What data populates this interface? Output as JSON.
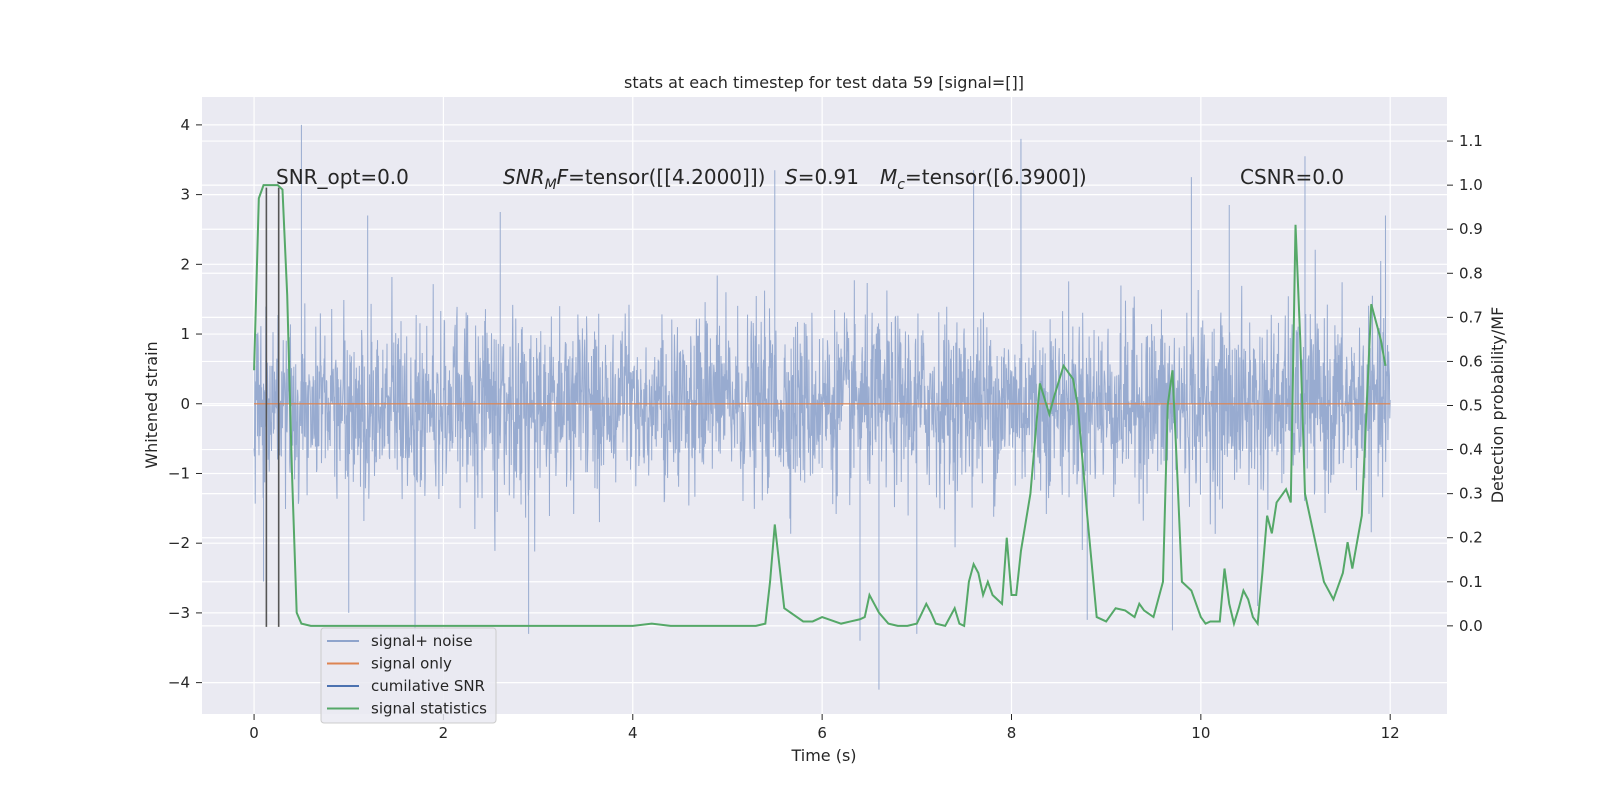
{
  "chart_data": {
    "type": "line",
    "title": "stats at each timestep for test data 59 [signal=[]]",
    "xlabel": "Time (s)",
    "ylabel": "Whitened strain",
    "ylabel_right": "Detection probability/MF",
    "xlim": [
      -0.55,
      12.6
    ],
    "ylim": [
      -4.45,
      4.4
    ],
    "ylim_right": [
      -0.2,
      1.2
    ],
    "x_ticks": [
      0,
      2,
      4,
      6,
      8,
      10,
      12
    ],
    "y_ticks": [
      -4,
      -3,
      -2,
      -1,
      0,
      1,
      2,
      3,
      4
    ],
    "y_ticks_right": [
      0.0,
      0.1,
      0.2,
      0.3,
      0.4,
      0.5,
      0.6,
      0.7,
      0.8,
      0.9,
      1.0,
      1.1
    ],
    "grid": true,
    "legend_position": "lower-left",
    "annotations": {
      "snr_opt": "SNR_opt=0.0",
      "snr_mf_prefix": "SNR",
      "snr_mf_sub": "M",
      "snr_mf_mid": "F",
      "snr_mf_value": "=tensor([[4.2000]])",
      "s_label": "S",
      "s_value": "=0.91",
      "mc_label": "M",
      "mc_sub": "c",
      "mc_value": "=tensor([6.3900])",
      "csnr": "CSNR=0.0"
    },
    "series": [
      {
        "name": "signal+ noise",
        "color": "#8fa4cc",
        "axis": "left",
        "x_range": [
          0,
          12
        ],
        "typical_range": [
          -1.3,
          1.3
        ],
        "peaks_high": [
          [
            0.5,
            4.0
          ],
          [
            1.2,
            2.7
          ],
          [
            2.6,
            2.75
          ],
          [
            5.5,
            3.35
          ],
          [
            7.6,
            3.35
          ],
          [
            8.1,
            3.8
          ],
          [
            9.9,
            3.25
          ],
          [
            10.3,
            2.85
          ],
          [
            11.1,
            3.55
          ],
          [
            11.95,
            2.7
          ]
        ],
        "peaks_low": [
          [
            0.1,
            -2.55
          ],
          [
            1.0,
            -3.0
          ],
          [
            1.7,
            -3.25
          ],
          [
            2.9,
            -3.3
          ],
          [
            6.4,
            -3.4
          ],
          [
            6.6,
            -4.1
          ],
          [
            7.0,
            -3.3
          ],
          [
            8.8,
            -3.1
          ],
          [
            9.7,
            -3.25
          ],
          [
            10.6,
            -2.9
          ]
        ]
      },
      {
        "name": "signal only",
        "color": "#dd8452",
        "axis": "left",
        "x": [
          0,
          12
        ],
        "y": [
          0,
          0
        ]
      },
      {
        "name": "cumilative SNR",
        "color": "#4c72b0",
        "axis": "left",
        "x": [],
        "y": []
      },
      {
        "name": "signal statistics",
        "color": "#55a868",
        "axis": "right",
        "x": [
          0.0,
          0.05,
          0.1,
          0.15,
          0.2,
          0.25,
          0.3,
          0.35,
          0.4,
          0.45,
          0.5,
          0.6,
          0.8,
          1.0,
          1.5,
          2.0,
          2.5,
          3.0,
          3.5,
          4.0,
          4.2,
          4.4,
          4.6,
          5.0,
          5.3,
          5.4,
          5.45,
          5.5,
          5.6,
          5.8,
          5.9,
          6.0,
          6.2,
          6.3,
          6.4,
          6.45,
          6.5,
          6.55,
          6.6,
          6.7,
          6.8,
          6.9,
          7.0,
          7.1,
          7.15,
          7.2,
          7.3,
          7.4,
          7.45,
          7.5,
          7.55,
          7.6,
          7.65,
          7.7,
          7.75,
          7.8,
          7.9,
          7.95,
          8.0,
          8.05,
          8.1,
          8.2,
          8.3,
          8.4,
          8.45,
          8.55,
          8.65,
          8.7,
          8.8,
          8.9,
          9.0,
          9.1,
          9.2,
          9.3,
          9.35,
          9.4,
          9.5,
          9.6,
          9.65,
          9.7,
          9.75,
          9.8,
          9.9,
          10.0,
          10.05,
          10.1,
          10.2,
          10.25,
          10.3,
          10.35,
          10.4,
          10.45,
          10.5,
          10.55,
          10.6,
          10.65,
          10.7,
          10.75,
          10.8,
          10.9,
          10.95,
          11.0,
          11.05,
          11.1,
          11.2,
          11.3,
          11.4,
          11.5,
          11.55,
          11.6,
          11.7,
          11.8,
          11.9,
          11.95
        ],
        "y": [
          0.58,
          0.97,
          1.0,
          1.0,
          1.0,
          1.0,
          0.99,
          0.75,
          0.35,
          0.03,
          0.005,
          0.0,
          0.0,
          0.0,
          0.0,
          0.0,
          0.0,
          0.0,
          0.0,
          0.0,
          0.005,
          0.0,
          0.0,
          0.0,
          0.0,
          0.005,
          0.1,
          0.23,
          0.04,
          0.01,
          0.01,
          0.02,
          0.005,
          0.01,
          0.015,
          0.02,
          0.07,
          0.05,
          0.03,
          0.005,
          0.0,
          0.0,
          0.005,
          0.05,
          0.03,
          0.005,
          0.0,
          0.04,
          0.005,
          0.0,
          0.1,
          0.14,
          0.12,
          0.07,
          0.1,
          0.07,
          0.05,
          0.2,
          0.07,
          0.07,
          0.17,
          0.3,
          0.55,
          0.48,
          0.52,
          0.59,
          0.56,
          0.5,
          0.25,
          0.02,
          0.01,
          0.04,
          0.035,
          0.02,
          0.05,
          0.035,
          0.02,
          0.1,
          0.5,
          0.58,
          0.35,
          0.1,
          0.08,
          0.02,
          0.005,
          0.01,
          0.01,
          0.13,
          0.05,
          0.005,
          0.04,
          0.08,
          0.06,
          0.02,
          0.005,
          0.12,
          0.25,
          0.21,
          0.28,
          0.31,
          0.28,
          0.91,
          0.65,
          0.3,
          0.2,
          0.1,
          0.06,
          0.12,
          0.19,
          0.13,
          0.25,
          0.73,
          0.65,
          0.59
        ]
      }
    ],
    "vertical_markers": {
      "color": "#555555",
      "x": [
        0.13,
        0.26
      ],
      "y_bottom": -3.2,
      "y_top": 3.1
    }
  }
}
